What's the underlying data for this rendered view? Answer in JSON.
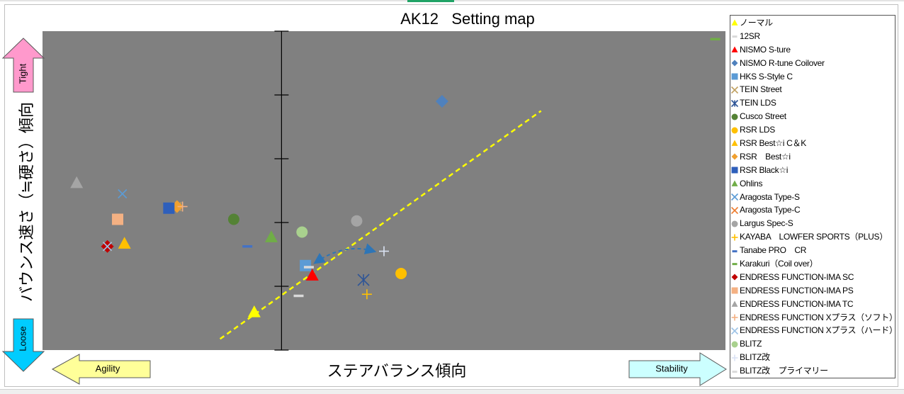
{
  "chart_data": {
    "type": "scatter",
    "title": "AK12   Setting map",
    "xlabel": "ステアバランス傾向",
    "ylabel": "バウンス速さ（≒硬さ）傾向",
    "xlim": [
      0,
      10
    ],
    "ylim": [
      0,
      10
    ],
    "grid": false,
    "legend_position": "right",
    "plot_background": "#808080",
    "axis_color": "#000000",
    "series": [
      {
        "name": "ノーマル",
        "marker": "triangle",
        "color": "#ffff00",
        "x": 3.1,
        "y": 1.2
      },
      {
        "name": "12SR",
        "marker": "dash",
        "color": "#d9d9d9",
        "x": 3.75,
        "y": 1.7
      },
      {
        "name": "NISMO S-ture",
        "marker": "triangle",
        "color": "#ff0000",
        "x": 3.95,
        "y": 2.35
      },
      {
        "name": "NISMO R-tune Coilover",
        "marker": "diamond",
        "color": "#4f81bd",
        "x": 5.85,
        "y": 7.8
      },
      {
        "name": "HKS S-Style C",
        "marker": "square",
        "color": "#5b9bd5",
        "x": 3.85,
        "y": 2.65
      },
      {
        "name": "TEIN Street",
        "marker": "x",
        "color": "#c0a060",
        "x": 1.97,
        "y": 4.5
      },
      {
        "name": "TEIN LDS",
        "marker": "star",
        "color": "#2e5597",
        "x": 4.7,
        "y": 2.2
      },
      {
        "name": "Cusco Street",
        "marker": "circle",
        "color": "#548235",
        "x": 2.8,
        "y": 4.1
      },
      {
        "name": "RSR LDS",
        "marker": "circle",
        "color": "#ffc000",
        "x": 5.25,
        "y": 2.4
      },
      {
        "name": "RSR Best☆i C＆K",
        "marker": "triangle",
        "color": "#ffc000",
        "x": 1.2,
        "y": 3.35
      },
      {
        "name": "RSR　Best☆i",
        "marker": "diamond",
        "color": "#f0a030",
        "x": 1.97,
        "y": 4.5
      },
      {
        "name": "RSR Black☆i",
        "marker": "square",
        "color": "#2e5fbb",
        "x": 1.85,
        "y": 4.45
      },
      {
        "name": "Ohlins",
        "marker": "triangle",
        "color": "#70ad47",
        "x": 3.35,
        "y": 3.55
      },
      {
        "name": "Aragosta Type-S",
        "marker": "x",
        "color": "#5b9bd5",
        "x": 1.17,
        "y": 4.9
      },
      {
        "name": "Aragosta Type-C",
        "marker": "x",
        "color": "#ed7d31",
        "x": 0.95,
        "y": 3.25
      },
      {
        "name": "Largus Spec-S",
        "marker": "circle",
        "color": "#a5a5a5",
        "x": 4.6,
        "y": 4.05
      },
      {
        "name": "KAYABA　LOWFER SPORTS（PLUS）",
        "marker": "plus",
        "color": "#ffc000",
        "x": 4.75,
        "y": 1.75
      },
      {
        "name": "Tanabe PRO　CR",
        "marker": "dash",
        "color": "#4472c4",
        "x": 3.0,
        "y": 3.25
      },
      {
        "name": "Karakuri（Coil over）",
        "marker": "dash",
        "color": "#70ad47",
        "x": 9.85,
        "y": 9.75
      },
      {
        "name": "ENDRESS FUNCTION-IMA SC",
        "marker": "diamond",
        "color": "#c00000",
        "x": 0.95,
        "y": 3.25
      },
      {
        "name": "ENDRESS FUNCTION-IMA PS",
        "marker": "square",
        "color": "#f4b183",
        "x": 1.1,
        "y": 4.1
      },
      {
        "name": "ENDRESS FUNCTION-IMA TC",
        "marker": "triangle",
        "color": "#a5a5a5",
        "x": 0.5,
        "y": 5.25
      },
      {
        "name": "ENDRESS FUNCTION Xプラス（ソフト）",
        "marker": "plus",
        "color": "#f4b183",
        "x": 2.05,
        "y": 4.5
      },
      {
        "name": "ENDRESS FUNCTION Xプラス（ハード）",
        "marker": "x",
        "color": "#9dc3e6",
        "x": 0.95,
        "y": 3.25
      },
      {
        "name": "BLITZ",
        "marker": "circle",
        "color": "#a9d18e",
        "x": 3.8,
        "y": 3.7
      },
      {
        "name": "BLITZ改",
        "marker": "plus",
        "color": "#dae3f3",
        "x": 5.0,
        "y": 3.1
      },
      {
        "name": "BLITZ改　プライマリー",
        "marker": "dash",
        "color": "#d9d9d9",
        "x": 3.9,
        "y": 2.6
      }
    ],
    "trendline": {
      "color": "#ffff00",
      "style": "dashed",
      "from": [
        2.6,
        0.35
      ],
      "to": [
        7.3,
        7.5
      ]
    },
    "annotation_arrow": {
      "color": "#2e75b6",
      "style": "dashed",
      "double_headed": true,
      "from": [
        4.0,
        2.75
      ],
      "to": [
        4.85,
        3.1
      ]
    }
  },
  "x_arrows": {
    "left": {
      "label": "Agility",
      "fill": "#ffff99"
    },
    "right": {
      "label": "Stability",
      "fill": "#ccffff"
    }
  },
  "y_arrows": {
    "top": {
      "label": "Tight",
      "fill": "#ff99cc"
    },
    "bottom": {
      "label": "Loose",
      "fill": "#00ccff"
    }
  }
}
